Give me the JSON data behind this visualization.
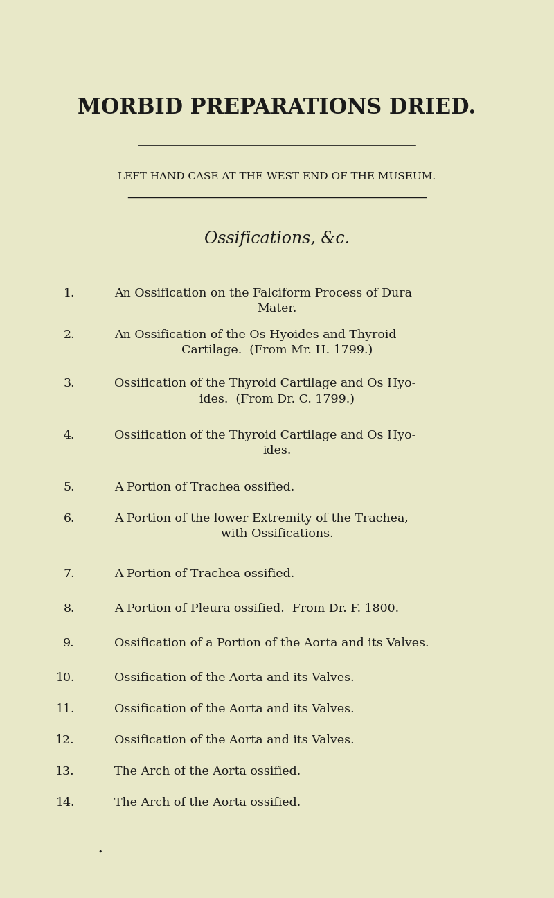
{
  "bg_color": "#e8e8c8",
  "text_color": "#1a1a1a",
  "title": "MORBID PREPARATIONS DRIED.",
  "subtitle": "LEFT HAND CASE AT THE WEST END OF THE MUSEU̲M.",
  "section_title": "Ossifications, &c.",
  "items": [
    {
      "num": "1.",
      "text": "An Ossification on the Falciform Process of Dura\nMater."
    },
    {
      "num": "2.",
      "text": "An Ossification of the Os Hyoides and Thyroid\nCartilage.  (From Mr. H. 1799.)"
    },
    {
      "num": "3.",
      "text": "Ossification of the Thyroid Cartilage and Os Hyo-\nides.  (From Dr. C. 1799.)"
    },
    {
      "num": "4.",
      "text": "Ossification of the Thyroid Cartilage and Os Hyo-\nides."
    },
    {
      "num": "5.",
      "text": "A Portion of Trachea ossified."
    },
    {
      "num": "6.",
      "text": "A Portion of the lower Extremity of the Trachea,\nwith Ossifications."
    },
    {
      "num": "7.",
      "text": "A Portion of Trachea ossified."
    },
    {
      "num": "8.",
      "text": "A Portion of Pleura ossified.  From Dr. F. 1800."
    },
    {
      "num": "9.",
      "text": "Ossification of a Portion of the Aorta and its Valves."
    },
    {
      "num": "10.",
      "text": "Ossification of the Aorta and its Valves."
    },
    {
      "num": "11.",
      "text": "Ossification of the Aorta and its Valves."
    },
    {
      "num": "12.",
      "text": "Ossification of the Aorta and its Valves."
    },
    {
      "num": "13.",
      "text": "The Arch of the Aorta ossified."
    },
    {
      "num": "14.",
      "text": "The Arch of the Aorta ossified."
    }
  ],
  "title_fontsize": 22,
  "subtitle_fontsize": 11,
  "section_fontsize": 17,
  "item_fontsize": 12.5,
  "figsize": [
    8.0,
    12.96
  ],
  "dpi": 100
}
